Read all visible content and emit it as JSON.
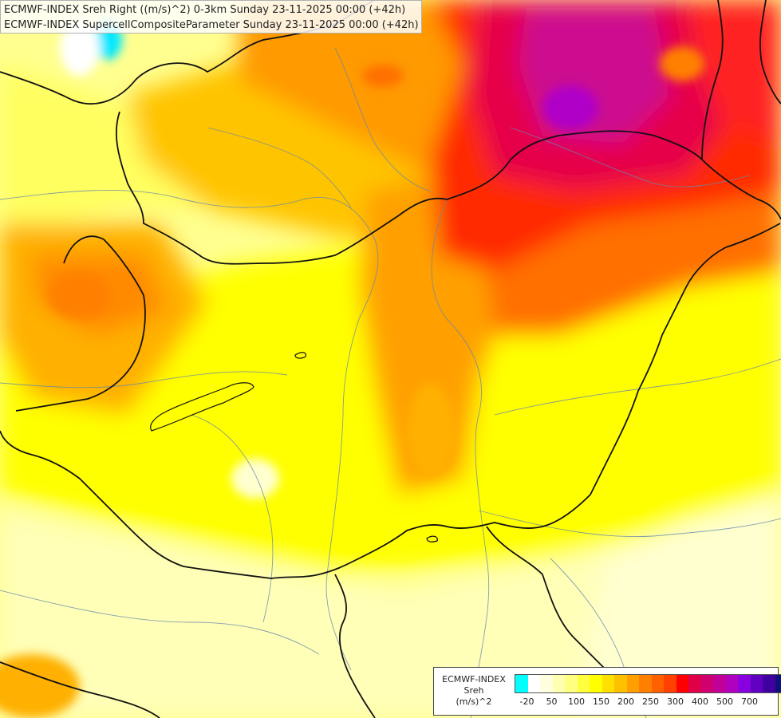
{
  "titles": {
    "line1": "ECMWF-INDEX Sreh Right ((m/s)^2) 0-3km Sunday 23-11-2025 00:00 (+42h)",
    "line2": "ECMWF-INDEX SupercellCompositeParameter Sunday 23-11-2025 00:00 (+42h)"
  },
  "legend": {
    "line1": "ECMWF-INDEX",
    "line2": "Sreh",
    "line3": "(m/s)^2",
    "colors": [
      "#00ffff",
      "#ffffff",
      "#ffffe0",
      "#ffffb0",
      "#ffff80",
      "#ffff40",
      "#ffff00",
      "#ffe000",
      "#ffc000",
      "#ffa000",
      "#ff8000",
      "#ff6000",
      "#ff4000",
      "#ff0000",
      "#e0004a",
      "#d00070",
      "#c00098",
      "#b000c0",
      "#8800e0",
      "#6000c0",
      "#4000a0",
      "#10107a"
    ],
    "ticks": [
      {
        "label": "-20",
        "at": 1
      },
      {
        "label": "50",
        "at": 3
      },
      {
        "label": "100",
        "at": 5
      },
      {
        "label": "150",
        "at": 7
      },
      {
        "label": "200",
        "at": 9
      },
      {
        "label": "250",
        "at": 11
      },
      {
        "label": "300",
        "at": 13
      },
      {
        "label": "400",
        "at": 15
      },
      {
        "label": "500",
        "at": 17
      },
      {
        "label": "700",
        "at": 19
      }
    ]
  }
}
